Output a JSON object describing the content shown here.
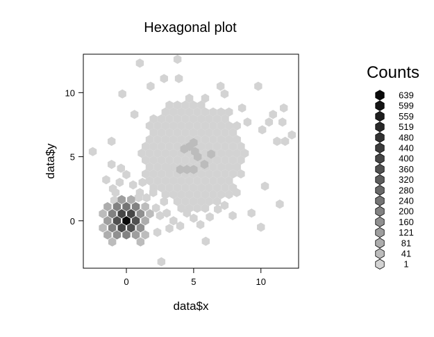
{
  "chart_data": {
    "type": "hexbin",
    "title": "Hexagonal plot",
    "xlabel": "data$x",
    "ylabel": "data$y",
    "xlim": [
      -3.2,
      12.8
    ],
    "ylim": [
      -3.7,
      13.0
    ],
    "xticks": [
      0,
      5,
      10
    ],
    "yticks": [
      0,
      5,
      10
    ],
    "legend": {
      "title": "Counts",
      "placement": "right",
      "levels": [
        "639",
        "599",
        "559",
        "519",
        "480",
        "440",
        "400",
        "360",
        "320",
        "280",
        "240",
        "200",
        "160",
        "121",
        "81",
        "41",
        "1"
      ]
    },
    "colors": {
      "background_hex": "#d3d3d3",
      "palette": [
        "#0a0a0a",
        "#141414",
        "#1e1e1e",
        "#282828",
        "#323232",
        "#3c3c3c",
        "#464646",
        "#505050",
        "#5c5c5c",
        "#686868",
        "#747474",
        "#828282",
        "#909090",
        "#9e9e9e",
        "#adadad",
        "#bcbcbc",
        "#d3d3d3"
      ]
    },
    "main_cloud": {
      "center": [
        5,
        5.2
      ],
      "spread": [
        2.5,
        3.1
      ]
    },
    "dense_cluster": {
      "center": [
        0,
        0
      ],
      "bins": [
        {
          "x": 0,
          "y": 0,
          "count": 639
        },
        {
          "x": -0.35,
          "y": 0.55,
          "count": 400
        },
        {
          "x": 0.35,
          "y": 0.55,
          "count": 400
        },
        {
          "x": -0.7,
          "y": 0,
          "count": 360
        },
        {
          "x": 0.7,
          "y": 0,
          "count": 360
        },
        {
          "x": -0.35,
          "y": -0.55,
          "count": 400
        },
        {
          "x": 0.35,
          "y": -0.55,
          "count": 360
        },
        {
          "x": 0,
          "y": 1.1,
          "count": 240
        },
        {
          "x": -0.7,
          "y": 1.1,
          "count": 200
        },
        {
          "x": 0.7,
          "y": 1.1,
          "count": 200
        },
        {
          "x": -1.05,
          "y": 0.55,
          "count": 200
        },
        {
          "x": 1.05,
          "y": 0.55,
          "count": 160
        },
        {
          "x": -1.05,
          "y": -0.55,
          "count": 200
        },
        {
          "x": 1.05,
          "y": -0.55,
          "count": 160
        },
        {
          "x": -0.7,
          "y": -1.1,
          "count": 160
        },
        {
          "x": 0,
          "y": -1.1,
          "count": 200
        },
        {
          "x": 0.7,
          "y": -1.1,
          "count": 121
        },
        {
          "x": -1.4,
          "y": 0,
          "count": 121
        },
        {
          "x": 1.4,
          "y": 0,
          "count": 81
        },
        {
          "x": -0.35,
          "y": 1.65,
          "count": 121
        },
        {
          "x": 0.35,
          "y": 1.65,
          "count": 81
        },
        {
          "x": -1.4,
          "y": 1.1,
          "count": 81
        },
        {
          "x": 1.4,
          "y": 1.1,
          "count": 41
        },
        {
          "x": -1.75,
          "y": 0.55,
          "count": 41
        },
        {
          "x": -1.75,
          "y": -0.55,
          "count": 41
        },
        {
          "x": 1.75,
          "y": 0.55,
          "count": 41
        },
        {
          "x": -1.05,
          "y": -1.65,
          "count": 41
        },
        {
          "x": 1.05,
          "y": -1.65,
          "count": 41
        },
        {
          "x": -1.4,
          "y": -1.1,
          "count": 81
        },
        {
          "x": 1.4,
          "y": -1.1,
          "count": 41
        }
      ]
    },
    "extra_bins": [
      {
        "x": -2.5,
        "y": 5.4
      },
      {
        "x": -1.1,
        "y": 6.2
      },
      {
        "x": -1.1,
        "y": 4.4
      },
      {
        "x": -0.8,
        "y": 2.2
      },
      {
        "x": -0.4,
        "y": 4.1
      },
      {
        "x": -0.3,
        "y": 9.9
      },
      {
        "x": 0.6,
        "y": 8.3
      },
      {
        "x": 1.0,
        "y": 12.3
      },
      {
        "x": 1.8,
        "y": 10.5
      },
      {
        "x": 2.3,
        "y": -0.9
      },
      {
        "x": 2.6,
        "y": -3.2
      },
      {
        "x": 2.8,
        "y": 11.1
      },
      {
        "x": 3.1,
        "y": 4.1
      },
      {
        "x": 3.8,
        "y": 12.6
      },
      {
        "x": 3.9,
        "y": 11.1
      },
      {
        "x": 5.9,
        "y": -1.6
      },
      {
        "x": 7.0,
        "y": 10.5
      },
      {
        "x": 7.3,
        "y": 9.9
      },
      {
        "x": 7.9,
        "y": 0.4
      },
      {
        "x": 8.2,
        "y": 2.2
      },
      {
        "x": 8.6,
        "y": 8.8
      },
      {
        "x": 9.0,
        "y": 7.7
      },
      {
        "x": 9.3,
        "y": 0.6
      },
      {
        "x": 9.8,
        "y": 10.5
      },
      {
        "x": 10.0,
        "y": -0.5
      },
      {
        "x": 10.1,
        "y": 7.1
      },
      {
        "x": 10.3,
        "y": 2.7
      },
      {
        "x": 10.6,
        "y": 7.7
      },
      {
        "x": 10.9,
        "y": 8.3
      },
      {
        "x": 11.2,
        "y": 6.2
      },
      {
        "x": 11.4,
        "y": 1.3
      },
      {
        "x": 11.6,
        "y": 7.7
      },
      {
        "x": 11.8,
        "y": 6.2
      },
      {
        "x": 11.7,
        "y": 8.8
      },
      {
        "x": 12.3,
        "y": 6.7
      }
    ],
    "mid_bins": [
      {
        "x": 4.3,
        "y": 5.6
      },
      {
        "x": 4.7,
        "y": 5.8
      },
      {
        "x": 5.1,
        "y": 5.4
      },
      {
        "x": 5.3,
        "y": 5.0
      },
      {
        "x": 6.3,
        "y": 5.2
      },
      {
        "x": 5.0,
        "y": 6.1
      },
      {
        "x": 4.0,
        "y": 4.0
      },
      {
        "x": 4.5,
        "y": 4.0
      },
      {
        "x": 5.0,
        "y": 4.0
      },
      {
        "x": 5.8,
        "y": 4.4
      }
    ]
  }
}
